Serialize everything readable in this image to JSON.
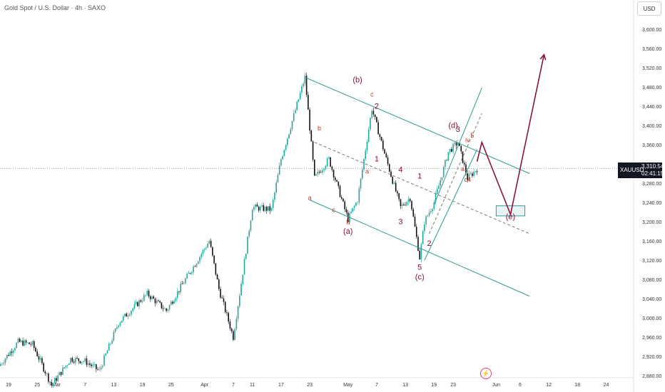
{
  "header": {
    "title": "Gold Spot / U.S. Dollar · 4h · SAXO",
    "currency": "USD"
  },
  "price_tag": {
    "symbol": "XAUUSD",
    "price": "3,310.54",
    "countdown": "02:41:15"
  },
  "icons": {
    "replay": "lightning-bolt-icon"
  },
  "colors": {
    "up": "#26a69a",
    "down": "#111111",
    "channel": "#2e9c94",
    "wave_major": "#8a0e3a",
    "wave_minor": "#c0392b",
    "projection": "#8a1538"
  },
  "chart_data": {
    "type": "candlestick",
    "xlabel": "",
    "ylabel": "",
    "y_ticks": [
      "3,600.00",
      "3,560.00",
      "3,520.00",
      "3,480.00",
      "3,440.00",
      "3,400.00",
      "3,360.00",
      "3,320.00",
      "3,280.00",
      "3,240.00",
      "3,200.00",
      "3,160.00",
      "3,120.00",
      "3,080.00",
      "3,040.00",
      "3,000.00",
      "2,960.00",
      "2,920.00",
      "2,880.00"
    ],
    "y_tick_values": [
      3600,
      3560,
      3520,
      3480,
      3440,
      3400,
      3360,
      3320,
      3280,
      3240,
      3200,
      3160,
      3120,
      3080,
      3040,
      3000,
      2960,
      2920,
      2880
    ],
    "x_ticks": [
      "19",
      "25",
      "Mar",
      "7",
      "13",
      "19",
      "25",
      "Apr",
      "7",
      "11",
      "17",
      "23",
      "May",
      "7",
      "13",
      "19",
      "23",
      "Jun",
      "6",
      "12",
      "18",
      "24"
    ],
    "x_tick_dates": [
      "2025-02-19",
      "2025-02-25",
      "2025-03-01",
      "2025-03-07",
      "2025-03-13",
      "2025-03-19",
      "2025-03-25",
      "2025-04-01",
      "2025-04-07",
      "2025-04-11",
      "2025-04-17",
      "2025-04-23",
      "2025-05-01",
      "2025-05-07",
      "2025-05-13",
      "2025-05-19",
      "2025-05-23",
      "2025-06-01",
      "2025-06-06",
      "2025-06-12",
      "2025-06-18",
      "2025-06-24"
    ],
    "price_path": [
      {
        "t": "2025-02-17",
        "p": 2900
      },
      {
        "t": "2025-02-21",
        "p": 2950
      },
      {
        "t": "2025-02-24",
        "p": 2945
      },
      {
        "t": "2025-02-28",
        "p": 2860
      },
      {
        "t": "2025-03-04",
        "p": 2915
      },
      {
        "t": "2025-03-07",
        "p": 2910
      },
      {
        "t": "2025-03-10",
        "p": 2890
      },
      {
        "t": "2025-03-14",
        "p": 2990
      },
      {
        "t": "2025-03-20",
        "p": 3050
      },
      {
        "t": "2025-03-24",
        "p": 3015
      },
      {
        "t": "2025-03-28",
        "p": 3080
      },
      {
        "t": "2025-04-02",
        "p": 3160
      },
      {
        "t": "2025-04-04",
        "p": 3060
      },
      {
        "t": "2025-04-07",
        "p": 2960
      },
      {
        "t": "2025-04-11",
        "p": 3230
      },
      {
        "t": "2025-04-15",
        "p": 3225
      },
      {
        "t": "2025-04-17",
        "p": 3330
      },
      {
        "t": "2025-04-22",
        "p": 3500
      },
      {
        "t": "2025-04-24",
        "p": 3290
      },
      {
        "t": "2025-04-27",
        "p": 3330
      },
      {
        "t": "2025-05-01",
        "p": 3205
      },
      {
        "t": "2025-05-03",
        "p": 3245
      },
      {
        "t": "2025-05-06",
        "p": 3435
      },
      {
        "t": "2025-05-09",
        "p": 3330
      },
      {
        "t": "2025-05-12",
        "p": 3230
      },
      {
        "t": "2025-05-14",
        "p": 3250
      },
      {
        "t": "2025-05-16",
        "p": 3125
      },
      {
        "t": "2025-05-17",
        "p": 3200
      },
      {
        "t": "2025-05-19",
        "p": 3240
      },
      {
        "t": "2025-05-22",
        "p": 3345
      },
      {
        "t": "2025-05-24",
        "p": 3365
      },
      {
        "t": "2025-05-26",
        "p": 3290
      },
      {
        "t": "2025-05-28",
        "p": 3310
      }
    ],
    "current_price": 3310.54,
    "channels": [
      {
        "name": "upper",
        "from": {
          "t": "2025-04-22",
          "p": 3500
        },
        "to": {
          "t": "2025-06-08",
          "p": 3300
        },
        "style": "solid"
      },
      {
        "name": "middle",
        "from": {
          "t": "2025-04-24",
          "p": 3365
        },
        "to": {
          "t": "2025-06-08",
          "p": 3175
        },
        "style": "dashed"
      },
      {
        "name": "lower",
        "from": {
          "t": "2025-04-23",
          "p": 3245
        },
        "to": {
          "t": "2025-06-08",
          "p": 3045
        },
        "style": "solid"
      },
      {
        "name": "rising-upper",
        "from": {
          "t": "2025-05-19",
          "p": 3235
        },
        "to": {
          "t": "2025-05-29",
          "p": 3478
        },
        "style": "solid"
      },
      {
        "name": "rising-lower",
        "from": {
          "t": "2025-05-17",
          "p": 3120
        },
        "to": {
          "t": "2025-05-28",
          "p": 3350
        },
        "style": "solid"
      },
      {
        "name": "rising-mid",
        "from": {
          "t": "2025-05-18",
          "p": 3175
        },
        "to": {
          "t": "2025-05-29",
          "p": 3425
        },
        "style": "dashed"
      }
    ],
    "projection": [
      {
        "t": "2025-05-28",
        "p": 3325
      },
      {
        "t": "2025-05-29",
        "p": 3365
      },
      {
        "t": "2025-06-04",
        "p": 3215
      },
      {
        "t": "2025-06-11",
        "p": 3547
      }
    ],
    "target_box": {
      "t1": "2025-06-01",
      "t2": "2025-06-07",
      "p1": 3212,
      "p2": 3233
    },
    "wave_labels": [
      {
        "text": "(b)",
        "t": "2025-05-03",
        "p": 3490,
        "kind": "major"
      },
      {
        "text": "c",
        "t": "2025-05-06",
        "p": 3460,
        "kind": "minor"
      },
      {
        "text": "2",
        "t": "2025-05-07",
        "p": 3435,
        "kind": "major"
      },
      {
        "text": "b",
        "t": "2025-04-25",
        "p": 3390,
        "kind": "minor"
      },
      {
        "text": "1",
        "t": "2025-05-07",
        "p": 3325,
        "kind": "major"
      },
      {
        "text": "a",
        "t": "2025-05-05",
        "p": 3300,
        "kind": "minor"
      },
      {
        "text": "4",
        "t": "2025-05-12",
        "p": 3303,
        "kind": "major"
      },
      {
        "text": "a",
        "t": "2025-04-23",
        "p": 3245,
        "kind": "minor"
      },
      {
        "text": "c",
        "t": "2025-04-28",
        "p": 3220,
        "kind": "minor"
      },
      {
        "text": "b",
        "t": "2025-05-01",
        "p": 3195,
        "kind": "minor"
      },
      {
        "text": "(a)",
        "t": "2025-05-01",
        "p": 3175,
        "kind": "major"
      },
      {
        "text": "3",
        "t": "2025-05-12",
        "p": 3195,
        "kind": "major"
      },
      {
        "text": "1",
        "t": "2025-05-16",
        "p": 3290,
        "kind": "major"
      },
      {
        "text": "2",
        "t": "2025-05-18",
        "p": 3150,
        "kind": "major"
      },
      {
        "text": "5",
        "t": "2025-05-16",
        "p": 3100,
        "kind": "major"
      },
      {
        "text": "(c)",
        "t": "2025-05-16",
        "p": 3080,
        "kind": "major"
      },
      {
        "text": "(d)",
        "t": "2025-05-23",
        "p": 3395,
        "kind": "major"
      },
      {
        "text": "3",
        "t": "2025-05-24",
        "p": 3387,
        "kind": "major"
      },
      {
        "text": "5",
        "t": "2025-05-27",
        "p": 3375,
        "kind": "minor"
      },
      {
        "text": "iv",
        "t": "2025-05-26",
        "p": 3365,
        "kind": "minor"
      },
      {
        "text": "a",
        "t": "2025-05-25",
        "p": 3305,
        "kind": "minor"
      },
      {
        "text": "c4",
        "t": "2025-05-26",
        "p": 3283,
        "kind": "minor"
      },
      {
        "text": "(e)",
        "t": "2025-06-04",
        "p": 3205,
        "kind": "major"
      }
    ],
    "grid": false,
    "legend": "none"
  }
}
